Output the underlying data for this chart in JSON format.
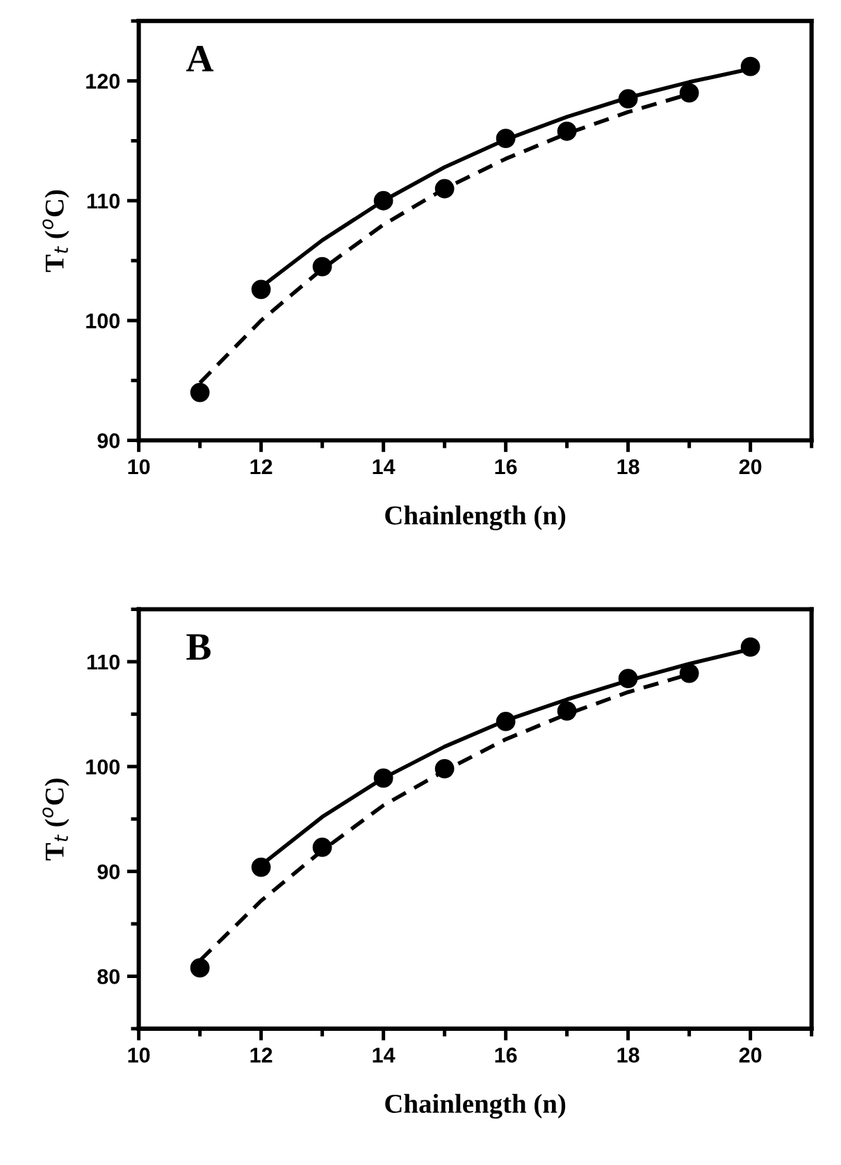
{
  "chart_data": [
    {
      "type": "scatter",
      "xlabel": "Chainlength (n)",
      "ylabel": "T$_{t}$ ($^{o}$C)",
      "annotations": [
        "A"
      ],
      "xlim": [
        10,
        21
      ],
      "ylim": [
        90,
        125
      ],
      "xticks": [
        10,
        12,
        14,
        16,
        18,
        20
      ],
      "yticks": [
        90,
        100,
        110,
        120
      ],
      "grid": false,
      "legend": false,
      "series": [
        {
          "marker": "circle",
          "color": "#000000",
          "x": [
            11,
            13,
            15,
            17,
            19
          ],
          "values": [
            94.0,
            104.5,
            111.0,
            115.8,
            119.0
          ]
        },
        {
          "marker": "circle",
          "color": "#000000",
          "x": [
            12,
            14,
            16,
            18,
            20
          ],
          "values": [
            102.6,
            110.0,
            115.2,
            118.5,
            121.2
          ]
        },
        {
          "type": "line",
          "marker": "none",
          "color": "#000000",
          "line_style": "solid",
          "x": [
            12,
            13,
            14,
            15,
            16,
            17,
            18,
            19,
            20
          ],
          "values": [
            102.8,
            106.7,
            110.0,
            112.8,
            115.1,
            117.0,
            118.6,
            119.9,
            121.0
          ]
        },
        {
          "type": "line",
          "marker": "none",
          "color": "#000000",
          "line_style": "dashed",
          "x": [
            11,
            12,
            13,
            14,
            15,
            16,
            17,
            18,
            19
          ],
          "values": [
            94.8,
            100.0,
            104.3,
            108.0,
            111.0,
            113.5,
            115.6,
            117.4,
            118.9
          ]
        }
      ]
    },
    {
      "type": "scatter",
      "xlabel": "Chainlength (n)",
      "ylabel": "T$_{t}$ ($^{o}$C)",
      "annotations": [
        "B"
      ],
      "xlim": [
        10,
        21
      ],
      "ylim": [
        75,
        115
      ],
      "xticks": [
        10,
        12,
        14,
        16,
        18,
        20
      ],
      "yticks": [
        80,
        90,
        100,
        110
      ],
      "grid": false,
      "legend": false,
      "series": [
        {
          "marker": "circle",
          "color": "#000000",
          "x": [
            11,
            13,
            15,
            17,
            19
          ],
          "values": [
            80.8,
            92.3,
            99.8,
            105.3,
            108.9
          ]
        },
        {
          "marker": "circle",
          "color": "#000000",
          "x": [
            12,
            14,
            16,
            18,
            20
          ],
          "values": [
            90.4,
            98.9,
            104.3,
            108.4,
            111.4
          ]
        },
        {
          "type": "line",
          "marker": "none",
          "color": "#000000",
          "line_style": "solid",
          "x": [
            12,
            13,
            14,
            15,
            16,
            17,
            18,
            19,
            20
          ],
          "values": [
            90.6,
            95.2,
            98.9,
            101.9,
            104.4,
            106.4,
            108.2,
            109.8,
            111.2
          ]
        },
        {
          "type": "line",
          "marker": "none",
          "color": "#000000",
          "line_style": "dashed",
          "x": [
            11,
            12,
            13,
            14,
            15,
            16,
            17,
            18,
            19
          ],
          "values": [
            81.5,
            87.2,
            92.0,
            96.3,
            99.6,
            102.6,
            105.0,
            107.1,
            108.8
          ]
        }
      ]
    }
  ]
}
